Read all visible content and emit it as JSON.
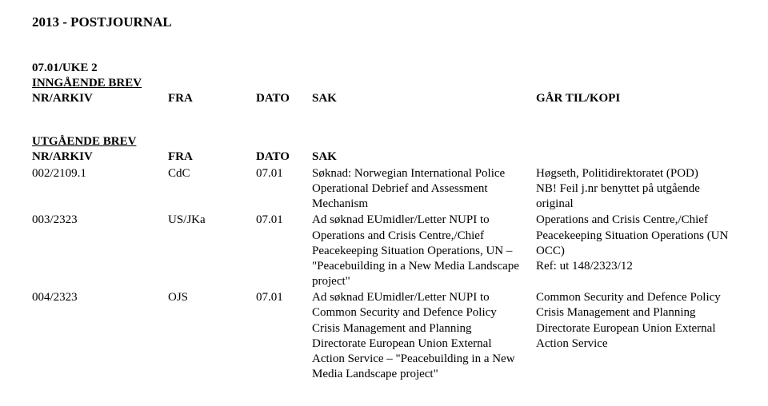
{
  "title": "2013 - POSTJOURNAL",
  "week": "07.01/UKE 2",
  "incoming": {
    "label": "INNGÅENDE BREV",
    "headers": {
      "nr": "NR/ARKIV",
      "fra": "FRA",
      "dato": "DATO",
      "sak": "SAK",
      "kopi": "GÅR TIL/KOPI"
    }
  },
  "outgoing": {
    "label": "UTGÅENDE BREV",
    "headers": {
      "nr": "NR/ARKIV",
      "fra": "FRA",
      "dato": "DATO",
      "sak": "SAK"
    },
    "rows": [
      {
        "nr": "002/2109.1",
        "fra": "CdC",
        "dato": "07.01",
        "sak": "Søknad: Norwegian International Police Operational Debrief and Assessment Mechanism",
        "kopi": "Høgseth, Politidirektoratet (POD)\nNB! Feil j.nr benyttet på utgående original"
      },
      {
        "nr": "003/2323",
        "fra": "US/JKa",
        "dato": "07.01",
        "sak": "Ad søknad EUmidler/Letter NUPI to Operations and Crisis Centre,/Chief Peacekeeping Situation Operations, UN – \"Peacebuilding in a New Media Landscape project\"",
        "kopi": "Operations and Crisis Centre,/Chief Peacekeeping Situation Operations (UN OCC)\nRef: ut 148/2323/12"
      },
      {
        "nr": "004/2323",
        "fra": "OJS",
        "dato": "07.01",
        "sak": "Ad søknad EUmidler/Letter NUPI to Common Security and Defence Policy Crisis Management and Planning Directorate European Union External Action Service – \"Peacebuilding in a New Media Landscape project\"",
        "kopi": "Common Security and Defence Policy Crisis Management and Planning Directorate European Union External Action Service"
      }
    ]
  }
}
